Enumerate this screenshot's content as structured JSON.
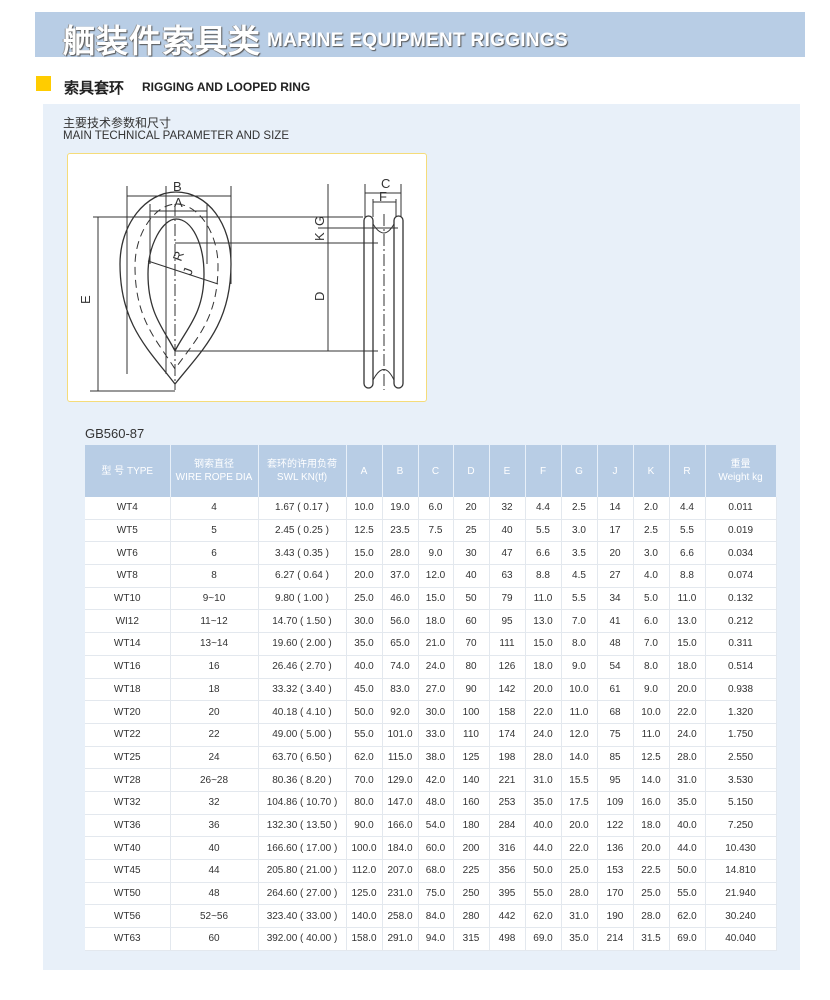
{
  "banner": {
    "title_cn": "舾装件索具类",
    "title_en": "MARINE EQUIPMENT RIGGINGS"
  },
  "section": {
    "title_cn": "索具套环",
    "title_en": "RIGGING AND LOOPED RING",
    "subtitle_cn": "主要技术参数和尺寸",
    "subtitle_en": "MAIN TECHNICAL PARAMETER AND SIZE",
    "accent": "#ffcc00"
  },
  "diagram": {
    "labels": {
      "A": "A",
      "B": "B",
      "C": "C",
      "D": "D",
      "E": "E",
      "F": "F",
      "G": "G",
      "K": "K",
      "R": "R",
      "J": "J"
    }
  },
  "standard": "GB560-87",
  "table": {
    "headers": [
      {
        "cn": "型 号 TYPE",
        "en": ""
      },
      {
        "cn": "钢索直径",
        "en": "WIRE ROPE DIA"
      },
      {
        "cn": "套环的许用负荷",
        "en": "SWL KN(tf)"
      },
      {
        "cn": "A",
        "en": ""
      },
      {
        "cn": "B",
        "en": ""
      },
      {
        "cn": "C",
        "en": ""
      },
      {
        "cn": "D",
        "en": ""
      },
      {
        "cn": "E",
        "en": ""
      },
      {
        "cn": "F",
        "en": ""
      },
      {
        "cn": "G",
        "en": ""
      },
      {
        "cn": "J",
        "en": ""
      },
      {
        "cn": "K",
        "en": ""
      },
      {
        "cn": "R",
        "en": ""
      },
      {
        "cn": "重量",
        "en": "Weight kg"
      }
    ],
    "rows": [
      [
        "WT4",
        "4",
        "1.67 ( 0.17 )",
        "10.0",
        "19.0",
        "6.0",
        "20",
        "32",
        "4.4",
        "2.5",
        "14",
        "2.0",
        "4.4",
        "0.011"
      ],
      [
        "WT5",
        "5",
        "2.45 ( 0.25 )",
        "12.5",
        "23.5",
        "7.5",
        "25",
        "40",
        "5.5",
        "3.0",
        "17",
        "2.5",
        "5.5",
        "0.019"
      ],
      [
        "WT6",
        "6",
        "3.43 ( 0.35 )",
        "15.0",
        "28.0",
        "9.0",
        "30",
        "47",
        "6.6",
        "3.5",
        "20",
        "3.0",
        "6.6",
        "0.034"
      ],
      [
        "WT8",
        "8",
        "6.27 ( 0.64 )",
        "20.0",
        "37.0",
        "12.0",
        "40",
        "63",
        "8.8",
        "4.5",
        "27",
        "4.0",
        "8.8",
        "0.074"
      ],
      [
        "WT10",
        "9~10",
        "9.80 ( 1.00 )",
        "25.0",
        "46.0",
        "15.0",
        "50",
        "79",
        "11.0",
        "5.5",
        "34",
        "5.0",
        "11.0",
        "0.132"
      ],
      [
        "WI12",
        "11~12",
        "14.70 ( 1.50 )",
        "30.0",
        "56.0",
        "18.0",
        "60",
        "95",
        "13.0",
        "7.0",
        "41",
        "6.0",
        "13.0",
        "0.212"
      ],
      [
        "WT14",
        "13~14",
        "19.60 ( 2.00 )",
        "35.0",
        "65.0",
        "21.0",
        "70",
        "111",
        "15.0",
        "8.0",
        "48",
        "7.0",
        "15.0",
        "0.311"
      ],
      [
        "WT16",
        "16",
        "26.46 ( 2.70 )",
        "40.0",
        "74.0",
        "24.0",
        "80",
        "126",
        "18.0",
        "9.0",
        "54",
        "8.0",
        "18.0",
        "0.514"
      ],
      [
        "WT18",
        "18",
        "33.32 ( 3.40 )",
        "45.0",
        "83.0",
        "27.0",
        "90",
        "142",
        "20.0",
        "10.0",
        "61",
        "9.0",
        "20.0",
        "0.938"
      ],
      [
        "WT20",
        "20",
        "40.18 ( 4.10 )",
        "50.0",
        "92.0",
        "30.0",
        "100",
        "158",
        "22.0",
        "11.0",
        "68",
        "10.0",
        "22.0",
        "1.320"
      ],
      [
        "WT22",
        "22",
        "49.00 ( 5.00 )",
        "55.0",
        "101.0",
        "33.0",
        "110",
        "174",
        "24.0",
        "12.0",
        "75",
        "11.0",
        "24.0",
        "1.750"
      ],
      [
        "WT25",
        "24",
        "63.70 ( 6.50 )",
        "62.0",
        "115.0",
        "38.0",
        "125",
        "198",
        "28.0",
        "14.0",
        "85",
        "12.5",
        "28.0",
        "2.550"
      ],
      [
        "WT28",
        "26~28",
        "80.36 ( 8.20 )",
        "70.0",
        "129.0",
        "42.0",
        "140",
        "221",
        "31.0",
        "15.5",
        "95",
        "14.0",
        "31.0",
        "3.530"
      ],
      [
        "WT32",
        "32",
        "104.86 ( 10.70 )",
        "80.0",
        "147.0",
        "48.0",
        "160",
        "253",
        "35.0",
        "17.5",
        "109",
        "16.0",
        "35.0",
        "5.150"
      ],
      [
        "WT36",
        "36",
        "132.30 ( 13.50 )",
        "90.0",
        "166.0",
        "54.0",
        "180",
        "284",
        "40.0",
        "20.0",
        "122",
        "18.0",
        "40.0",
        "7.250"
      ],
      [
        "WT40",
        "40",
        "166.60 ( 17.00 )",
        "100.0",
        "184.0",
        "60.0",
        "200",
        "316",
        "44.0",
        "22.0",
        "136",
        "20.0",
        "44.0",
        "10.430"
      ],
      [
        "WT45",
        "44",
        "205.80 ( 21.00 )",
        "112.0",
        "207.0",
        "68.0",
        "225",
        "356",
        "50.0",
        "25.0",
        "153",
        "22.5",
        "50.0",
        "14.810"
      ],
      [
        "WT50",
        "48",
        "264.60 ( 27.00 )",
        "125.0",
        "231.0",
        "75.0",
        "250",
        "395",
        "55.0",
        "28.0",
        "170",
        "25.0",
        "55.0",
        "21.940"
      ],
      [
        "WT56",
        "52~56",
        "323.40 ( 33.00 )",
        "140.0",
        "258.0",
        "84.0",
        "280",
        "442",
        "62.0",
        "31.0",
        "190",
        "28.0",
        "62.0",
        "30.240"
      ],
      [
        "WT63",
        "60",
        "392.00 ( 40.00 )",
        "158.0",
        "291.0",
        "94.0",
        "315",
        "498",
        "69.0",
        "35.0",
        "214",
        "31.5",
        "69.0",
        "40.040"
      ]
    ]
  }
}
